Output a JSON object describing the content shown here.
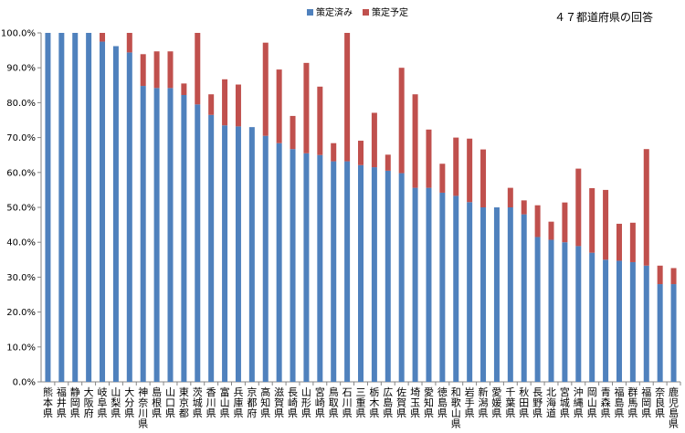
{
  "chart_data": {
    "type": "bar",
    "stacked": true,
    "note": "４７都道府県の回答",
    "categories": [
      "熊本県",
      "福井県",
      "静岡県",
      "大阪府",
      "岐阜県",
      "山梨県",
      "大分県",
      "神奈川県",
      "島根県",
      "山口県",
      "東京都",
      "茨城県",
      "香川県",
      "富山県",
      "兵庫県",
      "京都府",
      "高知県",
      "滋賀県",
      "長崎県",
      "山形県",
      "宮崎県",
      "鳥取県",
      "石川県",
      "三重県",
      "栃木県",
      "広島県",
      "佐賀県",
      "埼玉県",
      "愛知県",
      "徳島県",
      "和歌山県",
      "岩手県",
      "新潟県",
      "愛媛県",
      "千葉県",
      "秋田県",
      "長野県",
      "北海道",
      "宮城県",
      "沖縄県",
      "岡山県",
      "青森県",
      "福島県",
      "群馬県",
      "福岡県",
      "奈良県",
      "鹿児島県"
    ],
    "series": [
      {
        "name": "策定済み",
        "color": "#4f81bd",
        "values": [
          100,
          100,
          100,
          100,
          97.5,
          96.2,
          94.4,
          84.8,
          84.2,
          84.2,
          82.2,
          79.5,
          76.5,
          73.5,
          73.2,
          73.0,
          70.5,
          68.4,
          66.7,
          65.5,
          65.0,
          63.2,
          63.2,
          62.1,
          61.5,
          60.5,
          59.8,
          55.6,
          55.6,
          54.2,
          53.3,
          51.5,
          50.0,
          50.0,
          50.0,
          48.0,
          41.5,
          40.7,
          40.0,
          38.9,
          37.0,
          35.0,
          34.7,
          34.3,
          33.3,
          28.0,
          28.0
        ]
      },
      {
        "name": "策定予定",
        "color": "#c0504d",
        "values": [
          0,
          0,
          0,
          0,
          2.5,
          0,
          5.6,
          9.1,
          10.5,
          10.5,
          3.3,
          20.5,
          5.9,
          13.2,
          12.0,
          0,
          26.7,
          21.1,
          9.5,
          25.9,
          19.6,
          5.2,
          36.8,
          7.0,
          15.6,
          4.6,
          30.2,
          26.8,
          16.7,
          8.3,
          16.7,
          18.2,
          16.6,
          0,
          5.6,
          4.0,
          9.1,
          5.2,
          11.4,
          22.2,
          18.5,
          20.0,
          10.6,
          11.3,
          33.4,
          5.3,
          4.6
        ]
      }
    ],
    "ylim": [
      0,
      100
    ],
    "yticks": [
      "0.0%",
      "10.0%",
      "20.0%",
      "30.0%",
      "40.0%",
      "50.0%",
      "60.0%",
      "70.0%",
      "80.0%",
      "90.0%",
      "100.0%"
    ],
    "legend_position": "top-center",
    "grid": false
  }
}
